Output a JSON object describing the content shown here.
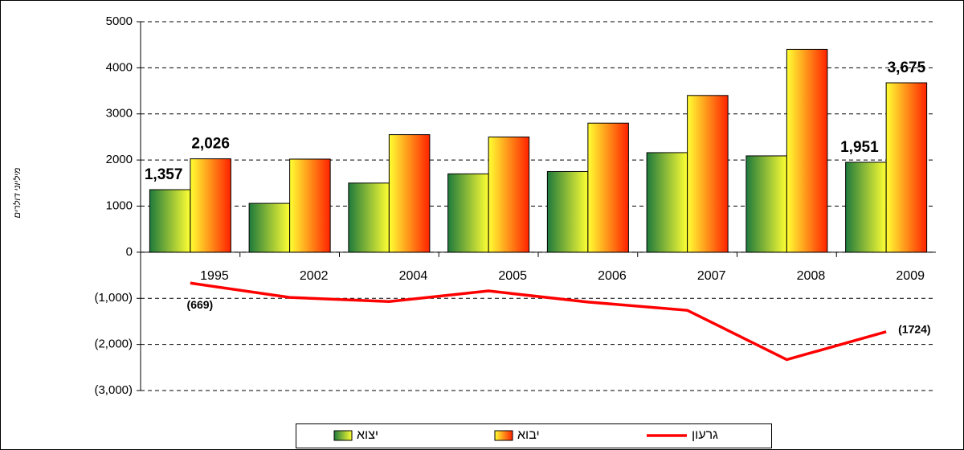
{
  "chart_data": {
    "type": "bar",
    "y_label": "מיליוני דולרים",
    "categories": [
      "1995",
      "2002",
      "2004",
      "2005",
      "2006",
      "2007",
      "2008",
      "2009"
    ],
    "series": [
      {
        "name": "יצוא",
        "type": "bar",
        "colors": [
          "#1f7a3c",
          "#ffff33"
        ],
        "values": [
          1357,
          1060,
          1500,
          1700,
          1750,
          2160,
          2090,
          1951
        ],
        "value_labels": [
          "1,357",
          null,
          null,
          null,
          null,
          null,
          null,
          "1,951"
        ]
      },
      {
        "name": "יבוא",
        "type": "bar",
        "colors": [
          "#ffff33",
          "#ff2200"
        ],
        "values": [
          2026,
          2020,
          2550,
          2500,
          2800,
          3400,
          4400,
          3675
        ],
        "value_labels": [
          "2,026",
          null,
          null,
          null,
          null,
          null,
          null,
          "3,675"
        ]
      },
      {
        "name": "גרעון",
        "type": "line",
        "color": "#ff0000",
        "values": [
          -669,
          -980,
          -1070,
          -840,
          -1080,
          -1260,
          -2330,
          -1724
        ],
        "value_labels": [
          "(669)",
          null,
          null,
          null,
          null,
          null,
          null,
          "(1724)"
        ]
      }
    ],
    "ylim": [
      -3000,
      5000
    ],
    "yticks": [
      5000,
      4000,
      3000,
      2000,
      1000,
      0,
      {
        "value": -1000,
        "label": "(1,000)"
      },
      {
        "value": -2000,
        "label": "(2,000)"
      },
      {
        "value": -3000,
        "label": "(3,000)"
      }
    ],
    "grid": true,
    "legend": "bottom"
  }
}
